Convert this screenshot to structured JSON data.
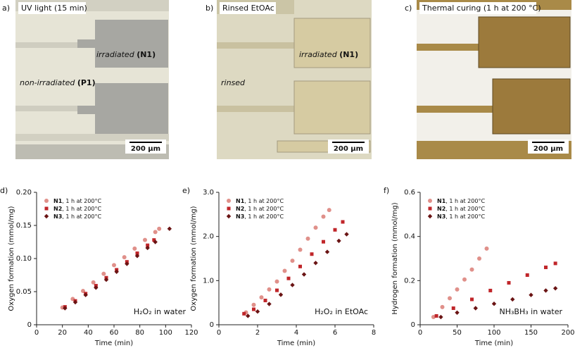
{
  "panels": [
    {
      "label": "a)",
      "title": "UV light (15 min)",
      "upper_text": "irradiated ",
      "upper_bold": "(N1)",
      "lower_text": "non-irradiated ",
      "lower_bold": "(P1)",
      "scale": "200 µm"
    },
    {
      "label": "b)",
      "title": "Rinsed EtOAc",
      "upper_text": "irradiated ",
      "upper_bold": "(N1)",
      "lower_text": "rinsed",
      "scale": "200 µm"
    },
    {
      "label": "c)",
      "title": "Thermal curing (1 h at 200 °C)",
      "scale": "200 µm"
    }
  ],
  "chart_data": [
    {
      "type": "scatter",
      "label": "d)",
      "xlabel": "Time (min)",
      "ylabel": "Oxygen formation (mmol/mg)",
      "annotation": "H₂O₂ in water",
      "xlim": [
        0,
        120
      ],
      "xticks": [
        0,
        20,
        40,
        60,
        80,
        100,
        120
      ],
      "ylim": [
        0,
        0.2
      ],
      "yticks": [
        0,
        0.05,
        {
          "value": 0.1,
          "label": "0.10"
        },
        0.15,
        {
          "value": 0.2,
          "label": "0.20"
        }
      ],
      "series": [
        {
          "name": "N1",
          "condition": ", 1 h at 200°C",
          "color": "#e0908a",
          "marker": "circle",
          "x": [
            20,
            28,
            36,
            44,
            52,
            60,
            68,
            76,
            84,
            92,
            95
          ],
          "values": [
            0.026,
            0.039,
            0.051,
            0.064,
            0.077,
            0.09,
            0.102,
            0.115,
            0.128,
            0.14,
            0.145
          ]
        },
        {
          "name": "N2",
          "condition": ", 1 h at 200°C",
          "color": "#c0262a",
          "marker": "square",
          "x": [
            22,
            30,
            38,
            46,
            54,
            62,
            70,
            78,
            86,
            91
          ],
          "values": [
            0.027,
            0.036,
            0.047,
            0.059,
            0.071,
            0.083,
            0.095,
            0.108,
            0.12,
            0.128
          ]
        },
        {
          "name": "N3",
          "condition": ", 1 h at 200°C",
          "color": "#6a1414",
          "marker": "diamond",
          "x": [
            22,
            30,
            38,
            46,
            54,
            62,
            70,
            78,
            86,
            92,
            103
          ],
          "values": [
            0.025,
            0.034,
            0.045,
            0.056,
            0.068,
            0.08,
            0.092,
            0.104,
            0.116,
            0.125,
            0.145
          ]
        }
      ]
    },
    {
      "type": "scatter",
      "label": "e)",
      "xlabel": "Time (min)",
      "ylabel": "Oxygen formation (mmol/mg)",
      "annotation": "H₂O₂ in EtOAc",
      "xlim": [
        0,
        8
      ],
      "xticks": [
        0,
        2,
        4,
        6,
        8
      ],
      "ylim": [
        0,
        3
      ],
      "yticks": [
        0,
        {
          "value": 1,
          "label": "1.0"
        },
        {
          "value": 2,
          "label": "2.0"
        },
        {
          "value": 3,
          "label": "3.0"
        }
      ],
      "series": [
        {
          "name": "N1",
          "condition": ", 1 h at 200°C",
          "color": "#e0908a",
          "marker": "circle",
          "x": [
            1.4,
            1.8,
            2.2,
            2.6,
            3.0,
            3.4,
            3.8,
            4.2,
            4.6,
            5.0,
            5.4,
            5.7
          ],
          "values": [
            0.28,
            0.45,
            0.62,
            0.8,
            0.98,
            1.22,
            1.45,
            1.7,
            1.95,
            2.2,
            2.45,
            2.6
          ]
        },
        {
          "name": "N2",
          "condition": ", 1 h at 200°C",
          "color": "#c0262a",
          "marker": "square",
          "x": [
            1.3,
            1.8,
            2.4,
            3.0,
            3.6,
            4.2,
            4.8,
            5.4,
            6.0,
            6.4
          ],
          "values": [
            0.25,
            0.35,
            0.55,
            0.78,
            1.05,
            1.32,
            1.6,
            1.88,
            2.15,
            2.33
          ]
        },
        {
          "name": "N3",
          "condition": ", 1 h at 200°C",
          "color": "#6a1414",
          "marker": "diamond",
          "x": [
            1.5,
            2.0,
            2.6,
            3.2,
            3.8,
            4.4,
            5.0,
            5.6,
            6.2,
            6.6
          ],
          "values": [
            0.2,
            0.3,
            0.47,
            0.68,
            0.9,
            1.14,
            1.4,
            1.65,
            1.9,
            2.05
          ]
        }
      ]
    },
    {
      "type": "scatter",
      "label": "f)",
      "xlabel": "Time (min)",
      "ylabel": "Hydrogen formation (mmol/mg)",
      "annotation": "NH₃BH₃ in water",
      "xlim": [
        0,
        200
      ],
      "xticks": [
        0,
        50,
        100,
        150,
        200
      ],
      "ylim": [
        0,
        0.6
      ],
      "yticks": [
        0,
        0.2,
        0.4,
        0.6
      ],
      "series": [
        {
          "name": "N1",
          "condition": ", 1 h at 200°C",
          "color": "#e0908a",
          "marker": "circle",
          "x": [
            18,
            30,
            40,
            50,
            60,
            70,
            80,
            90
          ],
          "values": [
            0.035,
            0.08,
            0.12,
            0.16,
            0.205,
            0.25,
            0.3,
            0.345
          ]
        },
        {
          "name": "N2",
          "condition": ", 1 h at 200°C",
          "color": "#c0262a",
          "marker": "square",
          "x": [
            22,
            45,
            70,
            95,
            120,
            145,
            170,
            183
          ],
          "values": [
            0.04,
            0.075,
            0.115,
            0.155,
            0.19,
            0.225,
            0.26,
            0.278
          ]
        },
        {
          "name": "N3",
          "condition": ", 1 h at 200°C",
          "color": "#6a1414",
          "marker": "diamond",
          "x": [
            28,
            50,
            75,
            100,
            125,
            150,
            170,
            183
          ],
          "values": [
            0.035,
            0.055,
            0.075,
            0.095,
            0.115,
            0.135,
            0.155,
            0.165
          ]
        }
      ]
    }
  ]
}
